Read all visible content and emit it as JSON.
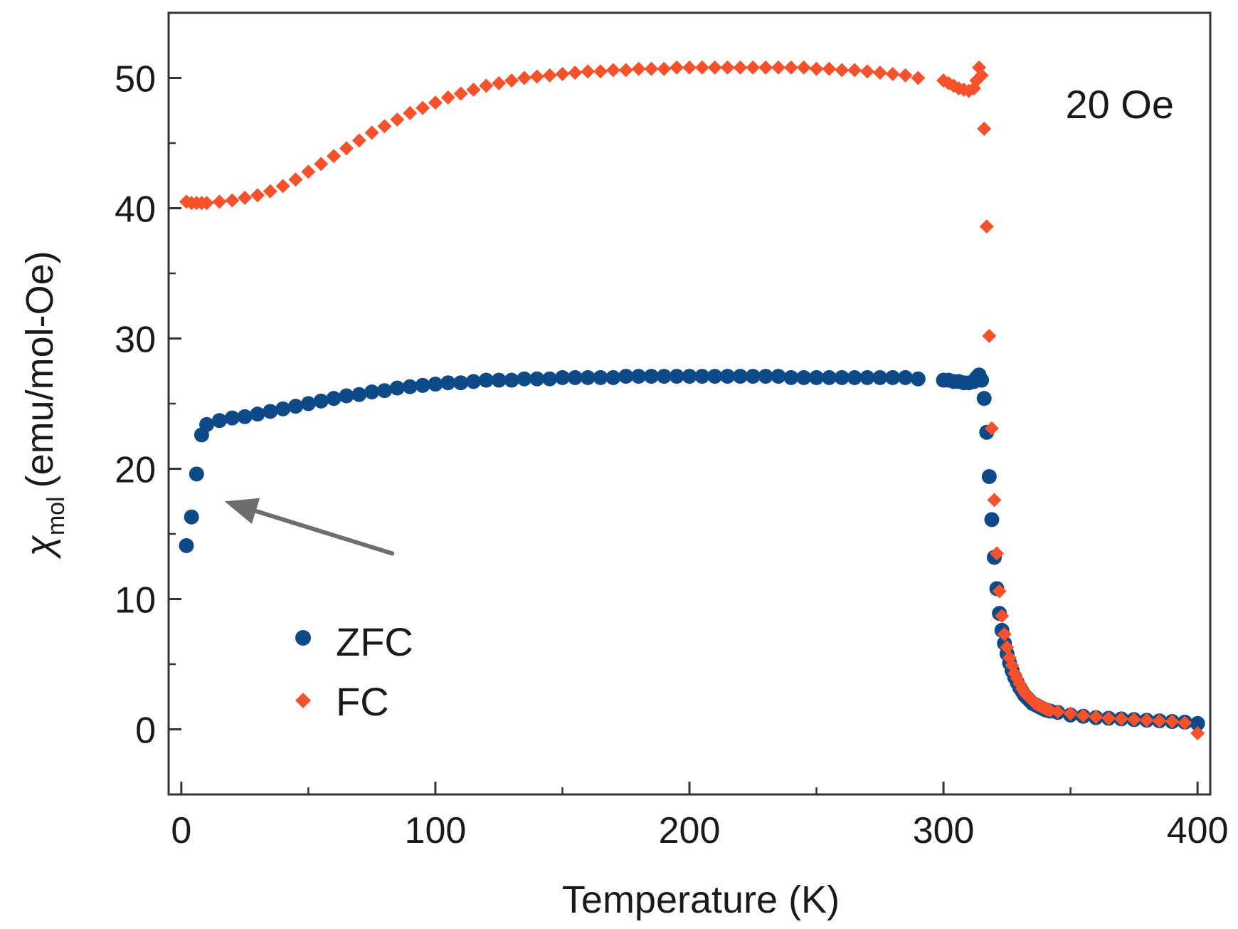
{
  "chart_data": {
    "type": "scatter",
    "title": "",
    "xlabel": "Temperature (K)",
    "ylabel_symbol": "χ",
    "ylabel_subscript": "mol",
    "ylabel_unit": "(emu/mol-Oe)",
    "xlim": [
      -5,
      405
    ],
    "ylim": [
      -5,
      55
    ],
    "xticks": [
      0,
      100,
      200,
      300,
      400
    ],
    "xticks_minor": [
      50,
      150,
      250,
      350
    ],
    "yticks": [
      0,
      10,
      20,
      30,
      40,
      50
    ],
    "yticks_minor": [
      5,
      15,
      25,
      35,
      45
    ],
    "annotation": "20 Oe",
    "arrow": {
      "from": [
        83,
        13.5
      ],
      "to": [
        17,
        17.5
      ]
    },
    "grid": false,
    "legend_position": "lower-left",
    "series": [
      {
        "name": "ZFC",
        "marker": "circle",
        "color": "#0d4a87",
        "x": [
          2,
          4,
          6,
          8,
          10,
          15,
          20,
          25,
          30,
          35,
          40,
          45,
          50,
          55,
          60,
          65,
          70,
          75,
          80,
          85,
          90,
          95,
          100,
          105,
          110,
          115,
          120,
          125,
          130,
          135,
          140,
          145,
          150,
          155,
          160,
          165,
          170,
          175,
          180,
          185,
          190,
          195,
          200,
          205,
          210,
          215,
          220,
          225,
          230,
          235,
          240,
          245,
          250,
          255,
          260,
          265,
          270,
          275,
          280,
          285,
          290,
          300,
          302,
          304,
          306,
          308,
          310,
          312,
          313,
          314,
          315,
          316,
          317,
          318,
          319,
          320,
          321,
          322,
          323,
          324,
          325,
          326,
          327,
          328,
          329,
          330,
          331,
          332,
          333,
          334,
          335,
          336,
          337,
          338,
          339,
          340,
          341,
          342,
          345,
          350,
          355,
          360,
          365,
          370,
          375,
          380,
          385,
          390,
          395,
          400
        ],
        "y": [
          14.1,
          16.3,
          19.6,
          22.6,
          23.4,
          23.7,
          23.9,
          24.0,
          24.2,
          24.4,
          24.6,
          24.8,
          25.0,
          25.2,
          25.4,
          25.6,
          25.7,
          25.9,
          26.0,
          26.2,
          26.3,
          26.4,
          26.5,
          26.6,
          26.6,
          26.7,
          26.8,
          26.8,
          26.8,
          26.9,
          26.9,
          26.9,
          27.0,
          27.0,
          27.0,
          27.0,
          27.0,
          27.1,
          27.1,
          27.1,
          27.1,
          27.1,
          27.1,
          27.1,
          27.1,
          27.1,
          27.1,
          27.1,
          27.1,
          27.1,
          27.0,
          27.0,
          27.0,
          27.0,
          27.0,
          27.0,
          27.0,
          27.0,
          27.0,
          27.0,
          26.9,
          26.8,
          26.8,
          26.7,
          26.7,
          26.6,
          26.6,
          26.7,
          27.0,
          27.2,
          26.8,
          25.4,
          22.8,
          19.4,
          16.1,
          13.2,
          10.8,
          8.9,
          7.6,
          6.6,
          5.8,
          5.1,
          4.5,
          4.0,
          3.6,
          3.2,
          2.9,
          2.6,
          2.4,
          2.2,
          2.0,
          1.9,
          1.8,
          1.7,
          1.6,
          1.5,
          1.45,
          1.4,
          1.3,
          1.1,
          1.0,
          0.9,
          0.85,
          0.8,
          0.75,
          0.7,
          0.65,
          0.6,
          0.55,
          0.45
        ]
      },
      {
        "name": "FC",
        "marker": "diamond",
        "color": "#f5512a",
        "x": [
          2,
          4,
          6,
          8,
          10,
          15,
          20,
          25,
          30,
          35,
          40,
          45,
          50,
          55,
          60,
          65,
          70,
          75,
          80,
          85,
          90,
          95,
          100,
          105,
          110,
          115,
          120,
          125,
          130,
          135,
          140,
          145,
          150,
          155,
          160,
          165,
          170,
          175,
          180,
          185,
          190,
          195,
          200,
          205,
          210,
          215,
          220,
          225,
          230,
          235,
          240,
          245,
          250,
          255,
          260,
          265,
          270,
          275,
          280,
          285,
          290,
          300,
          302,
          304,
          306,
          308,
          310,
          312,
          313,
          314,
          315,
          316,
          317,
          318,
          319,
          320,
          321,
          322,
          323,
          324,
          325,
          326,
          327,
          328,
          329,
          330,
          331,
          332,
          333,
          334,
          335,
          336,
          337,
          338,
          339,
          340,
          341,
          342,
          345,
          350,
          355,
          360,
          365,
          370,
          375,
          380,
          385,
          390,
          395,
          400
        ],
        "y": [
          40.5,
          40.4,
          40.4,
          40.4,
          40.4,
          40.5,
          40.6,
          40.8,
          41.0,
          41.3,
          41.7,
          42.2,
          42.8,
          43.4,
          44.0,
          44.6,
          45.2,
          45.8,
          46.3,
          46.8,
          47.3,
          47.7,
          48.1,
          48.5,
          48.8,
          49.1,
          49.4,
          49.6,
          49.8,
          50.0,
          50.1,
          50.2,
          50.3,
          50.4,
          50.5,
          50.5,
          50.6,
          50.6,
          50.7,
          50.7,
          50.7,
          50.8,
          50.8,
          50.8,
          50.8,
          50.8,
          50.8,
          50.8,
          50.8,
          50.8,
          50.8,
          50.8,
          50.7,
          50.7,
          50.6,
          50.6,
          50.5,
          50.4,
          50.3,
          50.2,
          50.0,
          49.8,
          49.6,
          49.4,
          49.2,
          49.1,
          49.0,
          49.2,
          49.8,
          50.8,
          50.2,
          46.1,
          38.6,
          30.2,
          23.1,
          17.6,
          13.5,
          10.6,
          8.7,
          7.3,
          6.3,
          5.5,
          4.9,
          4.3,
          3.9,
          3.5,
          3.1,
          2.8,
          2.6,
          2.4,
          2.2,
          2.0,
          1.9,
          1.8,
          1.7,
          1.6,
          1.5,
          1.45,
          1.35,
          1.2,
          1.05,
          0.95,
          0.85,
          0.8,
          0.75,
          0.7,
          0.65,
          0.6,
          0.5,
          -0.3
        ]
      }
    ]
  }
}
